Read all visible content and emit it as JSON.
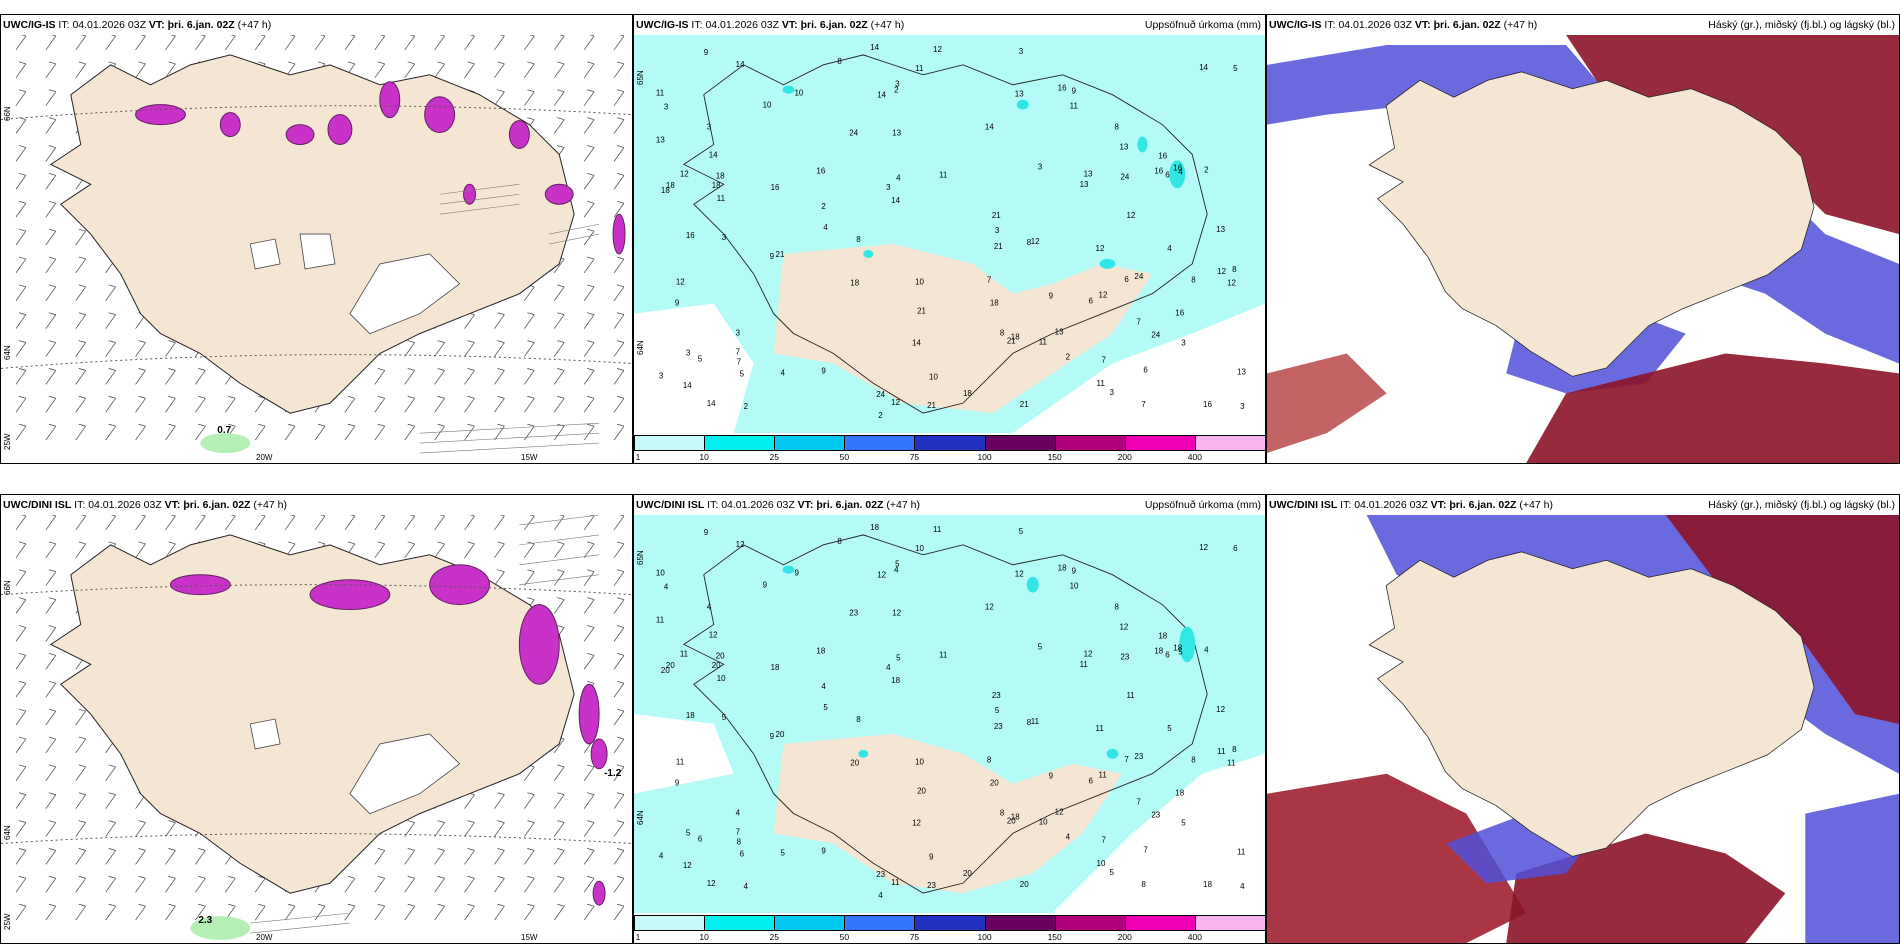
{
  "top_left": {
    "model": "UWC/IG-IS",
    "it_label": "IT:",
    "it": "04.01.2026 03Z",
    "vt_label": "VT:",
    "vt": "þri. 6.jan. 02Z",
    "lead": "(+47 h)",
    "lat_labels": [
      "66N",
      "64N",
      "25W"
    ],
    "lon_labels": [
      "20W",
      "15W"
    ],
    "value_label": "0.7"
  },
  "top_mid": {
    "model": "UWC/IG-IS",
    "it_label": "IT:",
    "it": "04.01.2026 03Z",
    "vt_label": "VT:",
    "vt": "þri. 6.jan. 02Z",
    "lead": "(+47 h)",
    "title": "Uppsöfnuð úrkoma (mm)",
    "lat_labels": [
      "65N",
      "64N"
    ]
  },
  "top_right": {
    "model": "UWC/IG-IS",
    "it_label": "IT:",
    "it": "04.01.2026 03Z",
    "vt_label": "VT:",
    "vt": "þri. 6.jan. 02Z",
    "lead": "(+47 h)",
    "title": "Háský (gr.), miðský (fj.bl.) og lágský (bl.)"
  },
  "bot_left": {
    "model": "UWC/DINI ISL",
    "it_label": "IT:",
    "it": "04.01.2026 03Z",
    "vt_label": "VT:",
    "vt": "þri. 6.jan. 02Z",
    "lead": "(+47 h)",
    "lat_labels": [
      "66N",
      "64N",
      "25W"
    ],
    "lon_labels": [
      "20W",
      "15W"
    ],
    "value_label": "2.3",
    "value_label2": "-1.2"
  },
  "bot_mid": {
    "model": "UWC/DINI ISL",
    "it_label": "IT:",
    "it": "04.01.2026 03Z",
    "vt_label": "VT:",
    "vt": "þri. 6.jan. 02Z",
    "lead": "(+47 h)",
    "title": "Uppsöfnuð úrkoma (mm)",
    "lat_labels": [
      "65N",
      "64N"
    ]
  },
  "bot_right": {
    "model": "UWC/DINI ISL",
    "it_label": "IT:",
    "it": "04.01.2026 03Z",
    "vt_label": "VT:",
    "vt": "þri. 6.jan. 02Z",
    "lead": "(+47 h)",
    "title": "Háský (gr.), miðský (fj.bl.) og lágský (bl.)"
  },
  "colorbar": {
    "ticks": [
      "1",
      "10",
      "25",
      "50",
      "75",
      "100",
      "150",
      "200",
      "400"
    ],
    "colors": [
      "#c8fafa",
      "#00f0f0",
      "#00c8f0",
      "#3278ff",
      "#2030c0",
      "#6a0060",
      "#b0007a",
      "#f000b4",
      "#f8b4f0"
    ]
  },
  "colors": {
    "land": "#f5e6d3",
    "precip": "#b4faf6",
    "precip_strong": "#32e6e6",
    "magenta": "#c832c8",
    "blue_cloud": "#5050d8",
    "dark_red": "#8c1428"
  },
  "precip_numbers_top": [
    "2",
    "3",
    "4",
    "5",
    "6",
    "7",
    "8",
    "9",
    "10",
    "11",
    "12",
    "13",
    "14",
    "16",
    "18",
    "21",
    "24"
  ],
  "precip_numbers_bot": [
    "4",
    "5",
    "6",
    "7",
    "8",
    "9",
    "10",
    "11",
    "12",
    "18",
    "20",
    "23"
  ]
}
